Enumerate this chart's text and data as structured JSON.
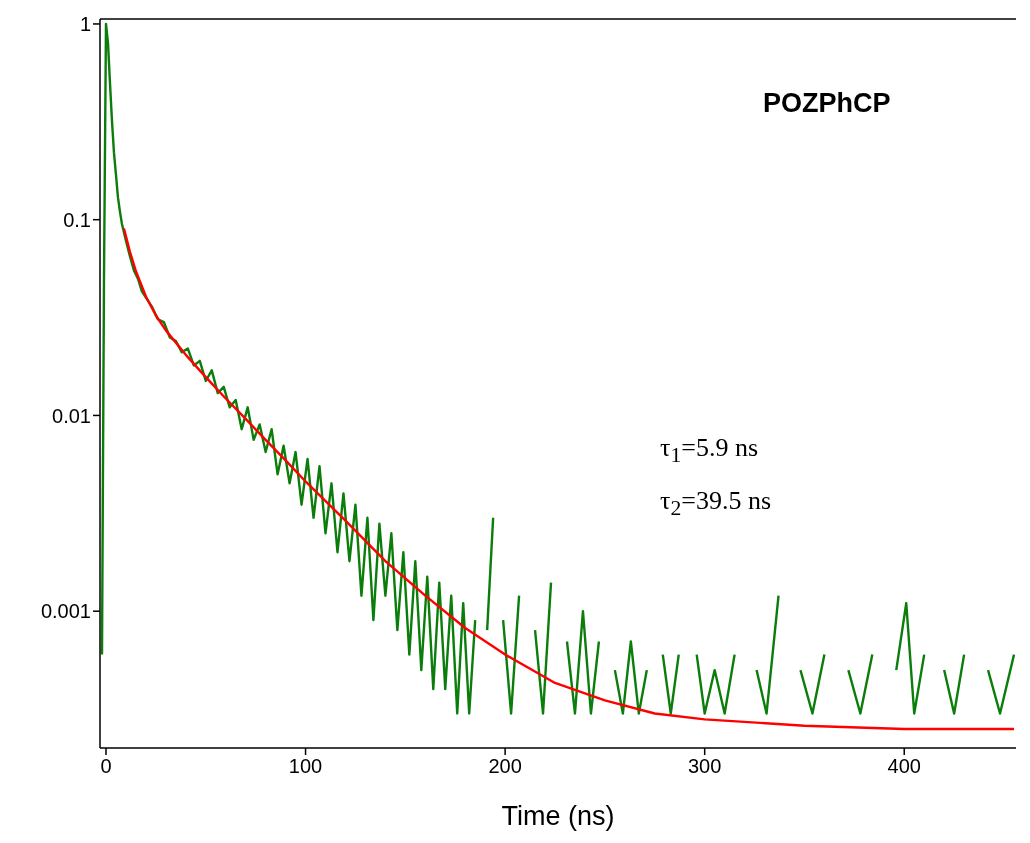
{
  "chart_data": {
    "type": "line",
    "title": "POZPhCP",
    "xlabel": "Time (ns)",
    "annotations": [
      "τ$_{1}$=5.9 ns",
      "τ$_{2}$=39.5 ns"
    ],
    "log": "y",
    "marker": "none",
    "line_style": "solid",
    "xlim": [
      -3,
      456
    ],
    "xticks": [
      0,
      100,
      200,
      300,
      400
    ],
    "ylim": [
      0.0002,
      1.06
    ],
    "yticks": [
      0.001,
      0.01,
      0.1,
      1
    ],
    "series": [
      {
        "color": "#0b7d0b",
        "x": [
          -2,
          -1,
          0,
          1,
          2,
          3,
          4,
          5,
          6,
          7,
          8,
          10,
          12,
          14,
          16,
          18,
          20,
          23,
          26,
          29,
          32,
          35,
          38,
          41,
          44,
          47,
          50,
          53,
          56,
          59,
          62,
          65,
          68,
          71,
          74,
          77,
          80,
          83,
          86,
          89,
          92,
          95,
          98,
          101,
          104,
          107,
          110,
          113,
          116,
          119,
          122,
          125,
          128,
          131,
          134,
          137,
          140,
          143,
          146,
          149,
          152,
          155,
          158,
          161,
          164,
          167,
          170,
          173,
          176,
          179,
          182,
          185,
          188,
          191,
          194,
          196,
          199,
          203,
          207,
          211,
          215,
          219,
          223,
          227,
          231,
          235,
          239,
          243,
          247,
          251,
          255,
          259,
          263,
          267,
          271,
          275,
          279,
          283,
          287,
          291,
          296,
          300,
          305,
          310,
          315,
          320,
          326,
          331,
          337,
          342,
          348,
          354,
          360,
          366,
          372,
          378,
          384,
          390,
          396,
          401,
          405,
          410,
          415,
          420,
          425,
          430,
          436,
          442,
          448,
          455
        ],
        "values": [
          0.0006,
          0.05,
          1.0,
          0.8,
          0.5,
          0.32,
          0.22,
          0.17,
          0.13,
          0.11,
          0.095,
          0.078,
          0.065,
          0.055,
          0.05,
          0.043,
          0.04,
          0.036,
          0.031,
          0.03,
          0.025,
          0.024,
          0.021,
          0.022,
          0.018,
          0.019,
          0.015,
          0.017,
          0.013,
          0.014,
          0.011,
          0.012,
          0.0085,
          0.011,
          0.0075,
          0.009,
          0.0065,
          0.0085,
          0.005,
          0.007,
          0.0045,
          0.0065,
          0.0035,
          0.006,
          0.003,
          0.0055,
          0.0025,
          0.0045,
          0.002,
          0.004,
          0.0018,
          0.0035,
          0.0012,
          0.003,
          0.0009,
          0.0028,
          0.0012,
          0.0025,
          0.0008,
          0.002,
          0.0006,
          0.0018,
          0.0005,
          0.0015,
          0.0004,
          0.0014,
          0.0004,
          0.0012,
          0.0003,
          0.0011,
          0.0003,
          0.0009,
          null,
          0.0008,
          0.003,
          null,
          0.0009,
          0.0003,
          0.0012,
          null,
          0.0008,
          0.0003,
          0.0014,
          null,
          0.0007,
          0.0003,
          0.001,
          0.0003,
          0.0007,
          null,
          0.0005,
          0.0003,
          0.0007,
          0.0003,
          0.0005,
          null,
          0.0006,
          0.0003,
          0.0006,
          null,
          0.0006,
          0.0003,
          0.0005,
          0.0003,
          0.0006,
          null,
          0.0005,
          0.0003,
          0.0012,
          null,
          0.0005,
          0.0003,
          0.0006,
          null,
          0.0005,
          0.0003,
          0.0006,
          null,
          0.0005,
          0.0011,
          0.0003,
          0.0006,
          null,
          0.0005,
          0.0003,
          0.0006,
          null,
          0.0005,
          0.0003,
          0.0006
        ]
      },
      {
        "color": "#ff0000",
        "x": [
          9,
          12,
          15,
          20,
          25,
          30,
          40,
          50,
          60,
          70,
          80,
          90,
          100,
          120,
          140,
          160,
          180,
          200,
          225,
          250,
          275,
          300,
          350,
          400,
          455
        ],
        "values": [
          0.09,
          0.0686,
          0.0545,
          0.0405,
          0.0324,
          0.0272,
          0.0204,
          0.0157,
          0.0122,
          0.0096,
          0.0075,
          0.0059,
          0.0046,
          0.0029,
          0.0018,
          0.0012,
          0.00082,
          0.0006,
          0.00043,
          0.00035,
          0.0003,
          0.00028,
          0.00026,
          0.00025,
          0.00025
        ]
      }
    ]
  }
}
